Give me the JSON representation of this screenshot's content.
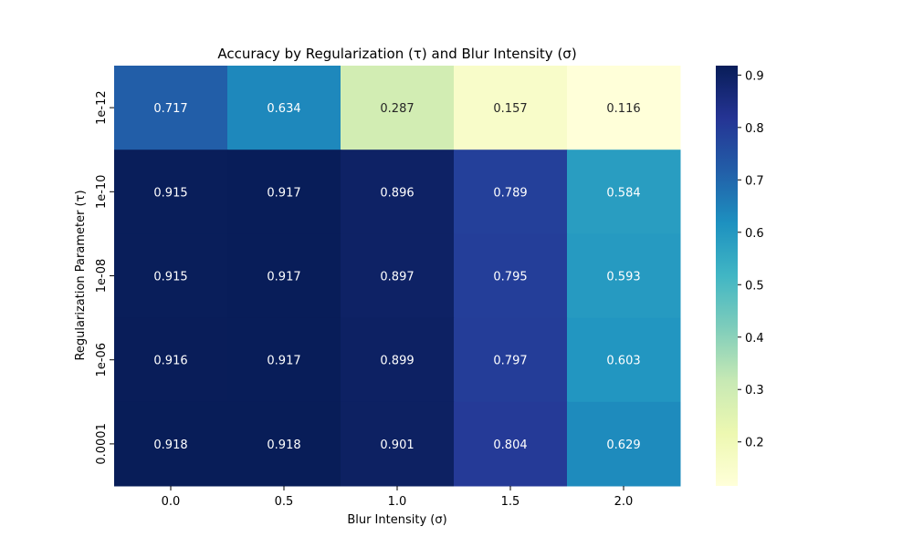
{
  "chart_data": {
    "type": "heatmap",
    "title": "Accuracy by Regularization (τ) and Blur Intensity (σ)",
    "xlabel": "Blur Intensity (σ)",
    "ylabel": "Regularization Parameter (τ)",
    "x_categories": [
      "0.0",
      "0.5",
      "1.0",
      "1.5",
      "2.0"
    ],
    "y_categories": [
      "1e-12",
      "1e-10",
      "1e-08",
      "1e-06",
      "0.0001"
    ],
    "values": [
      [
        0.717,
        0.634,
        0.287,
        0.157,
        0.116
      ],
      [
        0.915,
        0.917,
        0.896,
        0.789,
        0.584
      ],
      [
        0.915,
        0.917,
        0.897,
        0.795,
        0.593
      ],
      [
        0.916,
        0.917,
        0.899,
        0.797,
        0.603
      ],
      [
        0.918,
        0.918,
        0.901,
        0.804,
        0.629
      ]
    ],
    "value_labels": [
      [
        "0.717",
        "0.634",
        "0.287",
        "0.157",
        "0.116"
      ],
      [
        "0.915",
        "0.917",
        "0.896",
        "0.789",
        "0.584"
      ],
      [
        "0.915",
        "0.917",
        "0.897",
        "0.795",
        "0.593"
      ],
      [
        "0.916",
        "0.917",
        "0.899",
        "0.797",
        "0.603"
      ],
      [
        "0.918",
        "0.918",
        "0.901",
        "0.804",
        "0.629"
      ]
    ],
    "colormap": "YlGnBu",
    "vmin": 0.116,
    "vmax": 0.918,
    "colorbar_ticks": [
      "0.2",
      "0.3",
      "0.4",
      "0.5",
      "0.6",
      "0.7",
      "0.8",
      "0.9"
    ],
    "colorbar_tick_values": [
      0.2,
      0.3,
      0.4,
      0.5,
      0.6,
      0.7,
      0.8,
      0.9
    ],
    "grid": false
  }
}
